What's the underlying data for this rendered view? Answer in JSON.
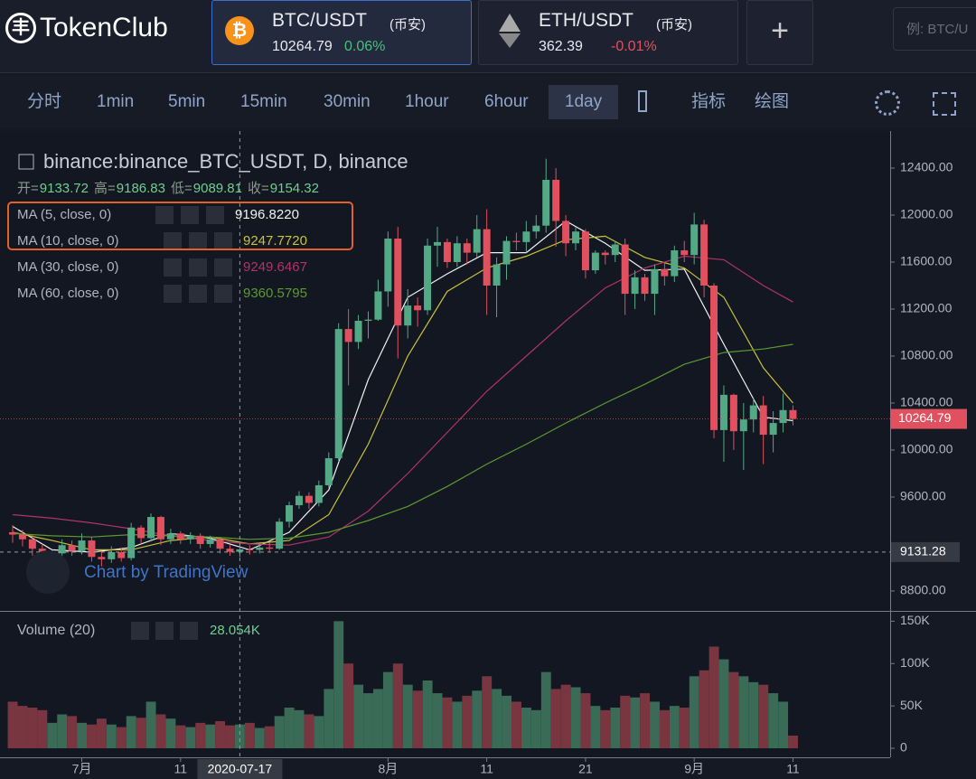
{
  "header": {
    "logo": "TokenClub",
    "tabs": [
      {
        "pair": "BTC/USDT",
        "exchange": "(币安)",
        "change": "0.06%"
      },
      {
        "pair": "ETH/USDT",
        "exchange": "(币安)",
        "price": "362.39",
        "change": "-0.01%"
      }
    ],
    "search_placeholder": "例: BTC/U"
  },
  "toolbar": {
    "intervals": [
      "分时",
      "1min",
      "5min",
      "15min",
      "30min",
      "1hour",
      "6hour",
      "1day"
    ],
    "tools": [
      "指标",
      "绘图"
    ]
  },
  "legend": {
    "symbol": "binance:binance_BTC_USDT, D, binance",
    "labels": [
      "开=",
      "高=",
      "低=",
      "收="
    ],
    "studies": [
      {
        "name": "MA (5, close, 0)",
        "value": "9196.8220"
      },
      {
        "name": "MA (10, close, 0)",
        "value": "9247.7720"
      },
      {
        "name": "MA (30, close, 0)",
        "value": "9249.6467"
      },
      {
        "name": "MA (60, close, 0)",
        "value": "9360.5795"
      }
    ],
    "volume": "Volume (20)",
    "volume_readout": "28.054K",
    "watermark": "Chart by TradingView"
  },
  "chart_data": {
    "type": "candlestick",
    "open": [
      9300,
      9280,
      9240,
      9160,
      9010,
      9120,
      9190,
      9140,
      9230,
      9090,
      9070,
      9130,
      9080,
      9340,
      9250,
      9430,
      9240,
      9290,
      9240,
      9270,
      9200,
      9240,
      9160,
      9133.72,
      9154.32,
      9150,
      9170,
      9160,
      9390,
      9530,
      9610,
      9550,
      9700,
      9930,
      11030,
      10920,
      11100,
      11110,
      11350,
      11800,
      11060,
      11230,
      11190,
      11740,
      11770,
      11600,
      11760,
      11680,
      11880,
      11400,
      11580,
      11780,
      11770,
      11860,
      11910,
      12300,
      11950,
      11760,
      11860,
      11530,
      11680,
      11660,
      11750,
      11330,
      11470,
      11330,
      11540,
      11480,
      11700,
      11660,
      11920,
      11400,
      10170,
      10470,
      10160,
      10260,
      10380,
      10130,
      10230,
      10340
    ],
    "high": [
      9360,
      9320,
      9280,
      9200,
      9150,
      9240,
      9230,
      9290,
      9260,
      9140,
      9180,
      9170,
      9380,
      9360,
      9460,
      9440,
      9330,
      9310,
      9300,
      9290,
      9270,
      9260,
      9190,
      9186.83,
      9190,
      9200,
      9210,
      9420,
      9560,
      9650,
      9640,
      9740,
      9980,
      11080,
      11200,
      11150,
      11180,
      11450,
      11860,
      11900,
      11370,
      11300,
      11800,
      11900,
      11800,
      11820,
      11800,
      12000,
      12050,
      11640,
      11820,
      11850,
      11950,
      12000,
      12480,
      12400,
      12000,
      11900,
      11880,
      11700,
      11700,
      11780,
      11800,
      11530,
      11500,
      11580,
      11600,
      11740,
      11780,
      12020,
      11960,
      11420,
      10550,
      10480,
      10400,
      10440,
      10460,
      10330,
      10480,
      10380
    ],
    "low": [
      9210,
      9180,
      9100,
      8960,
      8990,
      9090,
      9100,
      9110,
      9050,
      9010,
      9040,
      9050,
      9060,
      9200,
      9220,
      9190,
      9200,
      9200,
      9200,
      9160,
      9170,
      9120,
      9100,
      9089.81,
      9110,
      9120,
      9130,
      9150,
      9340,
      9500,
      9500,
      9520,
      9680,
      9900,
      10550,
      10860,
      10950,
      11100,
      11220,
      10780,
      10950,
      11050,
      11150,
      11560,
      11550,
      11560,
      11580,
      11640,
      11150,
      11130,
      11450,
      11700,
      11680,
      11800,
      11850,
      11730,
      11650,
      11700,
      11460,
      11500,
      11580,
      11600,
      11150,
      11200,
      11270,
      11150,
      11400,
      11430,
      11600,
      11580,
      11300,
      10100,
      9900,
      10000,
      9830,
      10150,
      9880,
      9980,
      10150,
      10210
    ],
    "close": [
      9280,
      9240,
      9160,
      9010,
      9120,
      9190,
      9140,
      9230,
      9090,
      9070,
      9130,
      9080,
      9340,
      9250,
      9430,
      9240,
      9290,
      9240,
      9270,
      9200,
      9240,
      9160,
      9133.72,
      9154.32,
      9150,
      9170,
      9160,
      9390,
      9530,
      9610,
      9550,
      9700,
      9930,
      11030,
      10920,
      11100,
      11110,
      11350,
      11800,
      11060,
      11230,
      11190,
      11740,
      11770,
      11600,
      11760,
      11680,
      11880,
      11400,
      11580,
      11780,
      11770,
      11860,
      11910,
      12300,
      11950,
      11760,
      11860,
      11530,
      11680,
      11660,
      11750,
      11330,
      11470,
      11330,
      11540,
      11480,
      11700,
      11660,
      11920,
      11400,
      10170,
      10470,
      10160,
      10260,
      10380,
      10130,
      10230,
      10340,
      10264.79
    ],
    "volume": [
      55000,
      50000,
      48000,
      45000,
      30000,
      40000,
      38000,
      30000,
      28000,
      35000,
      28000,
      25000,
      38000,
      36000,
      55000,
      40000,
      35000,
      27000,
      25000,
      30000,
      28000,
      32000,
      27000,
      28054,
      30000,
      24000,
      26000,
      38000,
      48000,
      45000,
      40000,
      38000,
      70000,
      150000,
      100000,
      75000,
      65000,
      70000,
      90000,
      100000,
      75000,
      68000,
      80000,
      65000,
      60000,
      55000,
      62000,
      68000,
      85000,
      70000,
      62000,
      55000,
      48000,
      45000,
      90000,
      70000,
      75000,
      72000,
      65000,
      50000,
      45000,
      48000,
      62000,
      60000,
      65000,
      55000,
      45000,
      50000,
      48000,
      85000,
      92000,
      120000,
      105000,
      90000,
      85000,
      78000,
      75000,
      65000,
      55000,
      15000
    ],
    "ma_x": [
      0,
      4,
      8,
      12,
      16,
      20,
      24,
      28,
      32,
      36,
      40,
      44,
      48,
      52,
      56,
      60,
      64,
      68,
      72,
      76,
      79
    ],
    "ma": [
      {
        "color": "#f2f2f2",
        "values": [
          9350,
          9150,
          9130,
          9170,
          9290,
          9250,
          9150,
          9300,
          9660,
          10600,
          11300,
          11500,
          11680,
          11680,
          11950,
          11760,
          11530,
          11540,
          10900,
          10280,
          10250
        ]
      },
      {
        "color": "#c9c23a",
        "values": [
          9300,
          9230,
          9150,
          9150,
          9230,
          9260,
          9200,
          9230,
          9450,
          10050,
          10800,
          11350,
          11550,
          11650,
          11790,
          11820,
          11640,
          11550,
          11300,
          10700,
          10400
        ]
      },
      {
        "color": "#b2336a",
        "values": [
          9450,
          9420,
          9380,
          9330,
          9270,
          9230,
          9200,
          9190,
          9260,
          9480,
          9800,
          10150,
          10500,
          10800,
          11100,
          11380,
          11550,
          11650,
          11620,
          11400,
          11260
        ]
      },
      {
        "color": "#5c9a2f",
        "values": [
          9290,
          9270,
          9260,
          9280,
          9270,
          9260,
          9240,
          9250,
          9300,
          9400,
          9520,
          9690,
          9880,
          10050,
          10230,
          10400,
          10560,
          10730,
          10830,
          10860,
          10900
        ]
      }
    ],
    "up_color": "#53a985",
    "down_color": "#e0505e",
    "ylim": [
      8638,
      12677
    ],
    "yticks": [
      {
        "value": 12400,
        "label": "12400.00"
      },
      {
        "value": 12000,
        "label": "12000.00"
      },
      {
        "value": 11600,
        "label": "11600.00"
      },
      {
        "value": 11200,
        "label": "11200.00"
      },
      {
        "value": 10800,
        "label": "10800.00"
      },
      {
        "value": 10400,
        "label": "10400.00"
      },
      {
        "value": 10000,
        "label": "10000.00"
      },
      {
        "value": 9600,
        "label": "9600.00"
      },
      {
        "value": 8800,
        "label": "8800.00"
      }
    ],
    "vlim": [
      0,
      160000
    ],
    "vticks": [
      {
        "value": 150000,
        "label": "150K"
      },
      {
        "value": 100000,
        "label": "100K"
      },
      {
        "value": 50000,
        "label": "50K"
      },
      0
    ],
    "xticks": [
      {
        "value": 7,
        "label": "7月"
      },
      {
        "value": 17,
        "label": "11"
      },
      {
        "value": 38,
        "label": "8月"
      },
      {
        "value": 48,
        "label": "11"
      },
      {
        "value": 58,
        "label": "21"
      },
      {
        "value": 69,
        "label": "9月"
      },
      {
        "value": 79,
        "label": "11"
      }
    ],
    "crosshair": {
      "index": 23,
      "date": "2020-07-17",
      "price": 9131.28
    }
  }
}
